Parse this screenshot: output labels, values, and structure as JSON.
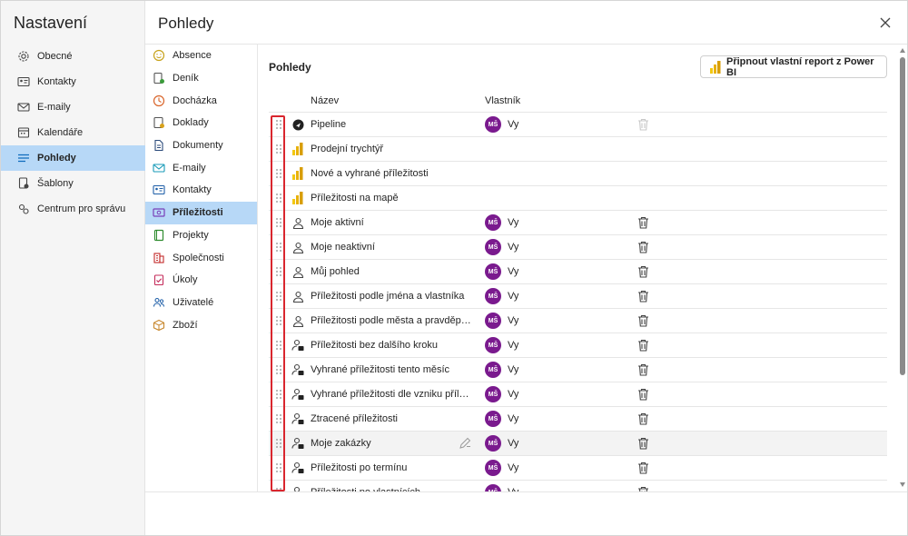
{
  "nav": {
    "title": "Nastavení",
    "items": [
      {
        "label": "Obecné",
        "icon": "gear-icon"
      },
      {
        "label": "Kontakty",
        "icon": "contact-card-icon"
      },
      {
        "label": "E-maily",
        "icon": "mail-icon"
      },
      {
        "label": "Kalendáře",
        "icon": "calendar-icon"
      },
      {
        "label": "Pohledy",
        "icon": "list-icon",
        "active": true
      },
      {
        "label": "Šablony",
        "icon": "template-icon"
      },
      {
        "label": "Centrum pro správu",
        "icon": "admin-gear-icon"
      }
    ]
  },
  "header": {
    "title": "Pohledy",
    "close_icon": "close-icon"
  },
  "subnav": {
    "items": [
      {
        "label": "Absence",
        "icon": "smiley-icon",
        "color": "#c7a21b"
      },
      {
        "label": "Deník",
        "icon": "diary-icon",
        "color": "#3a9b3a"
      },
      {
        "label": "Docházka",
        "icon": "clock-icon",
        "color": "#d9652b"
      },
      {
        "label": "Doklady",
        "icon": "receipt-icon",
        "color": "#d9a21b"
      },
      {
        "label": "Dokumenty",
        "icon": "document-icon",
        "color": "#2b4a7a"
      },
      {
        "label": "E-maily",
        "icon": "mail-icon",
        "color": "#1a9bb8"
      },
      {
        "label": "Kontakty",
        "icon": "contact-card-icon",
        "color": "#1f5fa8"
      },
      {
        "label": "Příležitosti",
        "icon": "opportunity-icon",
        "color": "#7a3fb8",
        "active": true
      },
      {
        "label": "Projekty",
        "icon": "project-icon",
        "color": "#2e8b2e"
      },
      {
        "label": "Společnosti",
        "icon": "building-icon",
        "color": "#c42b2b"
      },
      {
        "label": "Úkoly",
        "icon": "task-icon",
        "color": "#c42b5a"
      },
      {
        "label": "Uživatelé",
        "icon": "users-icon",
        "color": "#1f5fa8"
      },
      {
        "label": "Zboží",
        "icon": "box-icon",
        "color": "#c7862b"
      }
    ]
  },
  "content": {
    "title": "Pohledy",
    "powerbi_button": "Připnout vlastní report z Power BI",
    "columns": {
      "name": "Název",
      "owner": "Vlastník"
    },
    "rows": [
      {
        "name": "Pipeline",
        "type": "system",
        "owner": "Vy",
        "initials": "MŠ",
        "trash_disabled": true
      },
      {
        "name": "Prodejní trychtýř",
        "type": "powerbi"
      },
      {
        "name": "Nové a vyhrané příležitosti",
        "type": "powerbi"
      },
      {
        "name": "Příležitosti na mapě",
        "type": "powerbi"
      },
      {
        "name": "Moje aktivní",
        "type": "user",
        "owner": "Vy",
        "initials": "MŠ"
      },
      {
        "name": "Moje neaktivní",
        "type": "user",
        "owner": "Vy",
        "initials": "MŠ"
      },
      {
        "name": "Můj pohled",
        "type": "user",
        "owner": "Vy",
        "initials": "MŠ"
      },
      {
        "name": "Příležitosti podle jména a vlastníka",
        "type": "user",
        "owner": "Vy",
        "initials": "MŠ"
      },
      {
        "name": "Příležitosti podle města a pravděpo...",
        "type": "user",
        "owner": "Vy",
        "initials": "MŠ"
      },
      {
        "name": "Příležitosti bez dalšího kroku",
        "type": "shared",
        "owner": "Vy",
        "initials": "MŠ"
      },
      {
        "name": "Vyhrané příležitosti tento měsíc",
        "type": "shared",
        "owner": "Vy",
        "initials": "MŠ"
      },
      {
        "name": "Vyhrané příležitosti dle vzniku přílež...",
        "type": "shared",
        "owner": "Vy",
        "initials": "MŠ"
      },
      {
        "name": "Ztracené příležitosti",
        "type": "shared",
        "owner": "Vy",
        "initials": "MŠ"
      },
      {
        "name": "Moje zakázky",
        "type": "shared",
        "owner": "Vy",
        "initials": "MŠ",
        "hover": true
      },
      {
        "name": "Příležitosti po termínu",
        "type": "shared",
        "owner": "Vy",
        "initials": "MŠ"
      },
      {
        "name": "Příležitosti po vlastnících",
        "type": "shared",
        "owner": "Vy",
        "initials": "MŠ"
      }
    ]
  },
  "colors": {
    "accent": "#0f6cbd",
    "active_bg": "#b7d8f7",
    "avatar": "#7a1a8e",
    "highlight": "#d9262e",
    "powerbi_yellow": "#f2c811"
  }
}
